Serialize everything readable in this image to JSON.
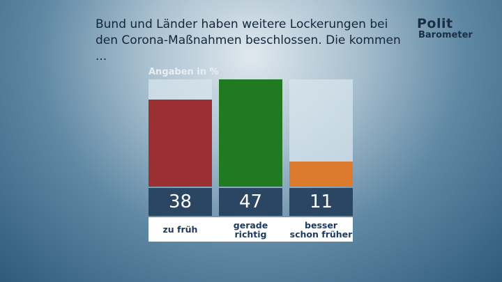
{
  "chart_data": {
    "type": "bar",
    "title": "Bund und Länder haben weitere Lockerungen bei den Corona-Maßnahmen beschlossen. Die kommen ...",
    "subtitle": "Angaben in %",
    "logo": [
      "Polit",
      "Barometer"
    ],
    "categories": [
      "zu früh",
      "gerade richtig",
      "besser schon früher"
    ],
    "values": [
      38,
      47,
      11
    ],
    "colors": [
      "#9b3033",
      "#1f7a22",
      "#dc7a2e"
    ]
  }
}
